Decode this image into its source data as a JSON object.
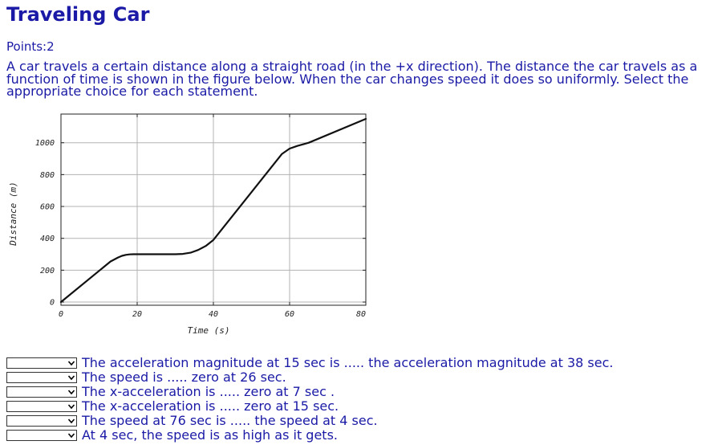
{
  "page": {
    "title": "Traveling Car",
    "points": "Points:2",
    "problem": "A car travels a certain distance along a straight road (in the +x direction). The distance the car travels as a function of time is shown in the figure below. When the car changes speed it does so uniformly. Select the appropriate choice for each statement."
  },
  "chart_data": {
    "type": "line",
    "xlabel": "Time (s)",
    "ylabel": "Distance (m)",
    "xlim": [
      0,
      80
    ],
    "ylim": [
      -20,
      1180
    ],
    "xticks": [
      0,
      20,
      40,
      60,
      80
    ],
    "yticks": [
      0,
      200,
      400,
      600,
      800,
      1000
    ],
    "grid": true,
    "series": [
      {
        "x": [
          0,
          13,
          15,
          16,
          17,
          18,
          19,
          20,
          30,
          32,
          34,
          36,
          38,
          40,
          58,
          60,
          62,
          65,
          80
        ],
        "y": [
          0,
          255,
          280,
          290,
          296,
          299,
          300,
          300,
          300,
          302,
          310,
          327,
          352,
          390,
          930,
          963,
          980,
          1000,
          1150
        ],
        "color": "#111111"
      }
    ]
  },
  "statements": [
    {
      "text": "The acceleration magnitude at 15 sec is ..... the acceleration magnitude at 38 sec.",
      "selected": ""
    },
    {
      "text": "The speed is ..... zero at 26 sec.",
      "selected": ""
    },
    {
      "text": "The x-acceleration is ..... zero at 7 sec .",
      "selected": ""
    },
    {
      "text": "The x-acceleration is ..... zero at 15 sec.",
      "selected": ""
    },
    {
      "text": "The speed at 76 sec is ..... the speed at 4 sec.",
      "selected": ""
    },
    {
      "text": "At 4 sec, the speed is as high as it gets.",
      "selected": ""
    }
  ]
}
